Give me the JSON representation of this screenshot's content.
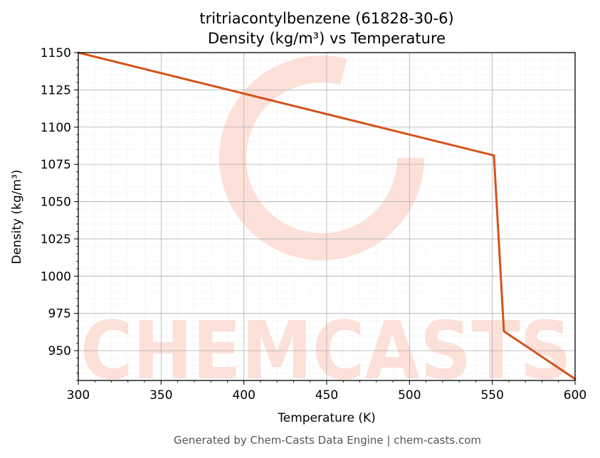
{
  "chart_data": {
    "type": "line",
    "title": "tritriacontylbenzene (61828-30-6)",
    "subtitle": "Density (kg/m³) vs Temperature",
    "xlabel": "Temperature (K)",
    "ylabel": "Density (kg/m³)",
    "xlim": [
      300,
      600
    ],
    "ylim": [
      930,
      1150
    ],
    "x_ticks": [
      300,
      350,
      400,
      450,
      500,
      550,
      600
    ],
    "y_ticks": [
      950,
      975,
      1000,
      1025,
      1050,
      1075,
      1100,
      1125,
      1150
    ],
    "grid": true,
    "series": [
      {
        "color": "#d4531c",
        "x": [
          300,
          551,
          557,
          600
        ],
        "y": [
          1150,
          1081,
          963,
          931
        ]
      }
    ]
  },
  "watermark": {
    "text": "CHEMCASTS",
    "color": "#fde0d8"
  },
  "footer": "Generated by Chem-Casts Data Engine | chem-casts.com"
}
